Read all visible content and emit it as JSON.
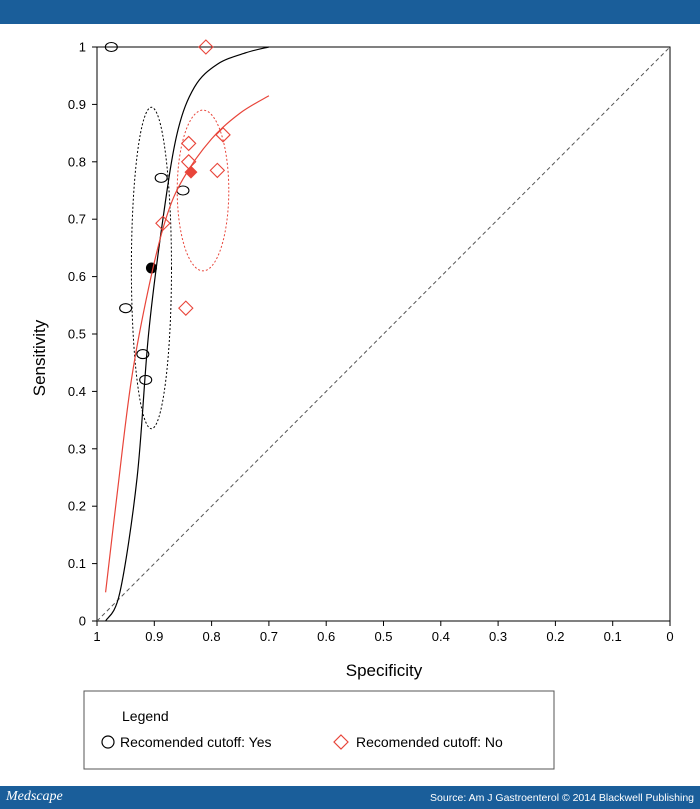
{
  "header": {
    "color": "#1a5e9a"
  },
  "footer": {
    "brand": "Medscape",
    "source": "Source: Am J Gastroenterol © 2014 Blackwell Publishing"
  },
  "chart_data": {
    "type": "scatter",
    "title": "",
    "xlabel": "Specificity",
    "ylabel": "Sensitivity",
    "xlim": [
      1,
      0
    ],
    "ylim": [
      0,
      1
    ],
    "x_ticks": [
      "1",
      "0.9",
      "0.8",
      "0.7",
      "0.6",
      "0.5",
      "0.4",
      "0.3",
      "0.2",
      "0.1",
      "0"
    ],
    "y_ticks": [
      "0",
      "0.1",
      "0.2",
      "0.3",
      "0.4",
      "0.5",
      "0.6",
      "0.7",
      "0.8",
      "0.9",
      "1"
    ],
    "grid": false,
    "legend": {
      "title": "Legend",
      "position": "bottom",
      "entries": [
        "Recomended cutoff: Yes",
        "Recomended cutoff: No"
      ]
    },
    "series": [
      {
        "name": "Recomended cutoff: Yes",
        "marker": "circle",
        "color": "#000000",
        "points": [
          [
            0.975,
            1.0
          ],
          [
            0.95,
            0.545
          ],
          [
            0.888,
            0.772
          ],
          [
            0.85,
            0.75
          ],
          [
            0.92,
            0.465
          ],
          [
            0.915,
            0.42
          ]
        ],
        "summary_point": [
          0.905,
          0.615
        ],
        "sroc_curve": [
          [
            0.985,
            0
          ],
          [
            0.96,
            0.05
          ],
          [
            0.93,
            0.25
          ],
          [
            0.91,
            0.5
          ],
          [
            0.885,
            0.7
          ],
          [
            0.86,
            0.85
          ],
          [
            0.83,
            0.93
          ],
          [
            0.79,
            0.97
          ],
          [
            0.74,
            0.99
          ],
          [
            0.7,
            1.0
          ]
        ],
        "confidence_region": {
          "center": [
            0.905,
            0.615
          ],
          "half_width": 0.035,
          "half_height": 0.28
        }
      },
      {
        "name": "Recomended cutoff: No",
        "marker": "diamond",
        "color": "#e8453a",
        "points": [
          [
            0.81,
            1.0
          ],
          [
            0.78,
            0.847
          ],
          [
            0.84,
            0.832
          ],
          [
            0.84,
            0.8
          ],
          [
            0.79,
            0.785
          ],
          [
            0.885,
            0.693
          ],
          [
            0.845,
            0.545
          ]
        ],
        "summary_point": [
          0.836,
          0.782
        ],
        "sroc_curve": [
          [
            0.985,
            0.05
          ],
          [
            0.965,
            0.22
          ],
          [
            0.94,
            0.42
          ],
          [
            0.91,
            0.58
          ],
          [
            0.88,
            0.7
          ],
          [
            0.85,
            0.77
          ],
          [
            0.8,
            0.84
          ],
          [
            0.75,
            0.885
          ],
          [
            0.7,
            0.915
          ]
        ],
        "confidence_region": {
          "center": [
            0.815,
            0.75
          ],
          "half_width": 0.045,
          "half_height": 0.14
        }
      }
    ]
  }
}
